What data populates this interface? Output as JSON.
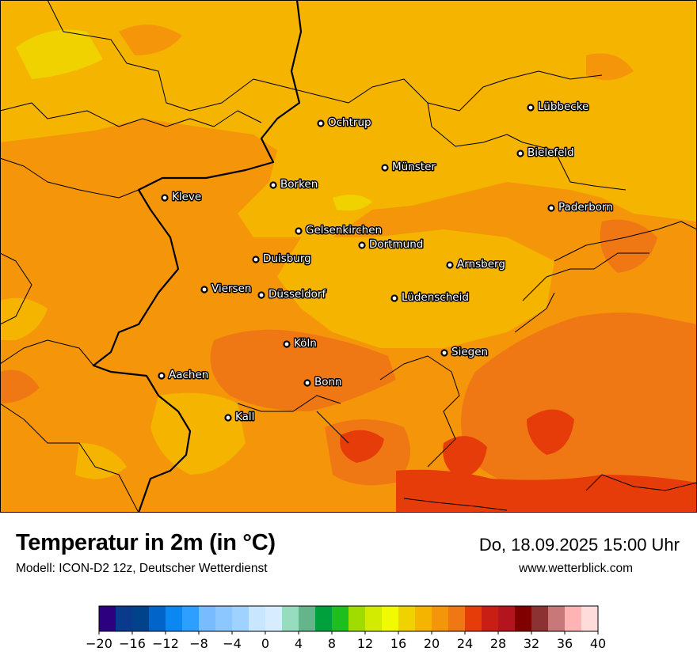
{
  "title": "Temperatur in 2m (in °C)",
  "subtitle": "Modell: ICON-D2 12z, Deutscher Wetterdienst",
  "datetime": "Do, 18.09.2025 15:00 Uhr",
  "website": "www.wetterblick.com",
  "cities": [
    {
      "name": "Lübbecke"
    },
    {
      "name": "Ochtrup"
    },
    {
      "name": "Bielefeld"
    },
    {
      "name": "Münster"
    },
    {
      "name": "Borken"
    },
    {
      "name": "Kleve"
    },
    {
      "name": "Paderborn"
    },
    {
      "name": "Gelsenkirchen"
    },
    {
      "name": "Dortmund"
    },
    {
      "name": "Duisburg"
    },
    {
      "name": "Arnsberg"
    },
    {
      "name": "Viersen"
    },
    {
      "name": "Düsseldorf"
    },
    {
      "name": "Lüdenscheid"
    },
    {
      "name": "Köln"
    },
    {
      "name": "Siegen"
    },
    {
      "name": "Aachen"
    },
    {
      "name": "Bonn"
    },
    {
      "name": "Kall"
    }
  ],
  "colorbar": {
    "colors": [
      "#2d0080",
      "#0a3a8c",
      "#00438a",
      "#0064c8",
      "#0a87f0",
      "#2da0ff",
      "#78bcff",
      "#8cc8ff",
      "#a0d2ff",
      "#c8e6ff",
      "#d8ecff",
      "#96dcbe",
      "#64b48c",
      "#00a03c",
      "#1ebe1e",
      "#a0dc00",
      "#d2eb00",
      "#f0fa00",
      "#f0d200",
      "#f5b400",
      "#f5960a",
      "#f07814",
      "#e63c0a",
      "#c81e14",
      "#b4141e",
      "#800000",
      "#8c3232",
      "#c87878",
      "#ffb4b4",
      "#ffdcdc"
    ],
    "ticks": [
      "−20",
      "−16",
      "−12",
      "−8",
      "−4",
      "0",
      "4",
      "8",
      "12",
      "16",
      "20",
      "24",
      "28",
      "32",
      "36",
      "40"
    ]
  },
  "legend_colors": {
    "t18_20": "#f0d200",
    "t20_22": "#f5b400",
    "t22_24": "#f5960a",
    "t24_26": "#f07814",
    "t26_28": "#e63c0a"
  }
}
